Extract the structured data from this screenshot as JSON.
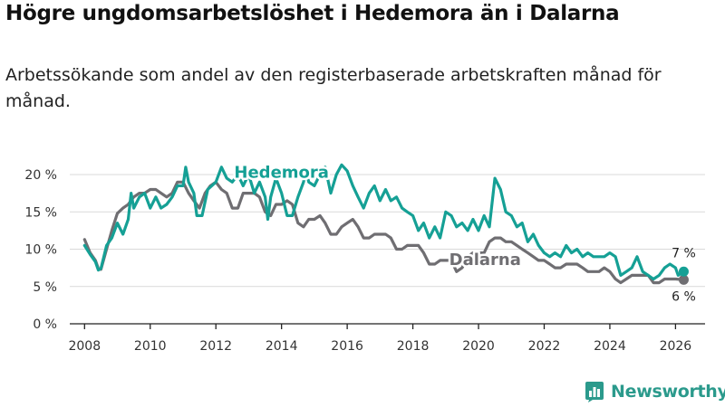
{
  "title": "Högre ungdomsarbetslöshet i Hedemora än i Dalarna",
  "subtitle": "Arbetssökande som andel av den registerbaserade arbetskraften månad för månad.",
  "brand": {
    "name": "Newsworthy",
    "icon": "bar-chart-logo-icon"
  },
  "colors": {
    "hedemora": "#15a095",
    "dalarna": "#6f6e72",
    "grid": "#d9d9d9",
    "axis": "#222222",
    "text": "#333333"
  },
  "chart_data": {
    "type": "line",
    "title": "Högre ungdomsarbetslöshet i Hedemora än i Dalarna",
    "xlabel": "",
    "ylabel": "",
    "xlim": [
      2007.55,
      2026.9
    ],
    "ylim": [
      0,
      20
    ],
    "x_ticks": [
      2008,
      2010,
      2012,
      2014,
      2016,
      2018,
      2020,
      2022,
      2024,
      2026
    ],
    "x_tick_labels": [
      "2008",
      "2010",
      "2012",
      "2014",
      "2016",
      "2018",
      "2020",
      "2022",
      "2024",
      "2026"
    ],
    "y_ticks": [
      0,
      5,
      10,
      15,
      20
    ],
    "y_tick_labels": [
      "0 %",
      "5 %",
      "10 %",
      "15 %",
      "20 %"
    ],
    "series": [
      {
        "name": "Hedemora",
        "label": "Hedemora",
        "end_label": "7 %",
        "points": [
          [
            2008.0,
            10.5
          ],
          [
            2008.17,
            9.3
          ],
          [
            2008.33,
            8.3
          ],
          [
            2008.42,
            7.2
          ],
          [
            2008.5,
            7.4
          ],
          [
            2008.67,
            10.5
          ],
          [
            2008.83,
            11.5
          ],
          [
            2009.0,
            13.5
          ],
          [
            2009.17,
            12.0
          ],
          [
            2009.33,
            14.0
          ],
          [
            2009.42,
            17.5
          ],
          [
            2009.5,
            15.5
          ],
          [
            2009.67,
            17.0
          ],
          [
            2009.83,
            17.5
          ],
          [
            2010.0,
            15.5
          ],
          [
            2010.17,
            17.0
          ],
          [
            2010.33,
            15.5
          ],
          [
            2010.5,
            16.0
          ],
          [
            2010.67,
            17.0
          ],
          [
            2010.83,
            18.5
          ],
          [
            2011.0,
            18.5
          ],
          [
            2011.08,
            21.0
          ],
          [
            2011.17,
            19.0
          ],
          [
            2011.33,
            17.5
          ],
          [
            2011.42,
            14.5
          ],
          [
            2011.58,
            14.5
          ],
          [
            2011.75,
            18.0
          ],
          [
            2012.0,
            19.0
          ],
          [
            2012.17,
            21.0
          ],
          [
            2012.33,
            19.5
          ],
          [
            2012.5,
            19.0
          ],
          [
            2012.67,
            20.0
          ],
          [
            2012.83,
            18.5
          ],
          [
            2013.0,
            20.0
          ],
          [
            2013.17,
            17.5
          ],
          [
            2013.33,
            19.0
          ],
          [
            2013.5,
            17.0
          ],
          [
            2013.58,
            14.0
          ],
          [
            2013.67,
            17.0
          ],
          [
            2013.83,
            19.5
          ],
          [
            2014.0,
            17.5
          ],
          [
            2014.17,
            14.5
          ],
          [
            2014.33,
            14.5
          ],
          [
            2014.5,
            17.0
          ],
          [
            2014.67,
            19.0
          ],
          [
            2014.75,
            20.5
          ],
          [
            2014.83,
            19.0
          ],
          [
            2015.0,
            18.5
          ],
          [
            2015.17,
            20.0
          ],
          [
            2015.33,
            21.0
          ],
          [
            2015.5,
            17.5
          ],
          [
            2015.67,
            20.0
          ],
          [
            2015.83,
            21.3
          ],
          [
            2016.0,
            20.5
          ],
          [
            2016.17,
            18.5
          ],
          [
            2016.33,
            17.0
          ],
          [
            2016.5,
            15.5
          ],
          [
            2016.67,
            17.5
          ],
          [
            2016.83,
            18.5
          ],
          [
            2017.0,
            16.5
          ],
          [
            2017.17,
            18.0
          ],
          [
            2017.33,
            16.5
          ],
          [
            2017.5,
            17.0
          ],
          [
            2017.67,
            15.5
          ],
          [
            2017.83,
            15.0
          ],
          [
            2018.0,
            14.5
          ],
          [
            2018.17,
            12.5
          ],
          [
            2018.33,
            13.5
          ],
          [
            2018.5,
            11.5
          ],
          [
            2018.67,
            13.0
          ],
          [
            2018.83,
            11.5
          ],
          [
            2019.0,
            15.0
          ],
          [
            2019.17,
            14.5
          ],
          [
            2019.33,
            13.0
          ],
          [
            2019.5,
            13.5
          ],
          [
            2019.67,
            12.5
          ],
          [
            2019.83,
            14.0
          ],
          [
            2020.0,
            12.5
          ],
          [
            2020.17,
            14.5
          ],
          [
            2020.33,
            13.0
          ],
          [
            2020.5,
            19.5
          ],
          [
            2020.67,
            18.0
          ],
          [
            2020.83,
            15.0
          ],
          [
            2021.0,
            14.5
          ],
          [
            2021.17,
            13.0
          ],
          [
            2021.33,
            13.5
          ],
          [
            2021.5,
            11.0
          ],
          [
            2021.67,
            12.0
          ],
          [
            2021.83,
            10.5
          ],
          [
            2022.0,
            9.5
          ],
          [
            2022.17,
            9.0
          ],
          [
            2022.33,
            9.5
          ],
          [
            2022.5,
            9.0
          ],
          [
            2022.67,
            10.5
          ],
          [
            2022.83,
            9.5
          ],
          [
            2023.0,
            10.0
          ],
          [
            2023.17,
            9.0
          ],
          [
            2023.33,
            9.5
          ],
          [
            2023.5,
            9.0
          ],
          [
            2023.67,
            9.0
          ],
          [
            2023.83,
            9.0
          ],
          [
            2024.0,
            9.5
          ],
          [
            2024.17,
            9.0
          ],
          [
            2024.33,
            6.5
          ],
          [
            2024.5,
            7.0
          ],
          [
            2024.67,
            7.5
          ],
          [
            2024.83,
            9.0
          ],
          [
            2025.0,
            7.0
          ],
          [
            2025.17,
            6.5
          ],
          [
            2025.33,
            6.0
          ],
          [
            2025.5,
            6.5
          ],
          [
            2025.67,
            7.5
          ],
          [
            2025.83,
            8.0
          ],
          [
            2026.0,
            7.5
          ],
          [
            2026.08,
            6.5
          ],
          [
            2026.25,
            7.0
          ]
        ]
      },
      {
        "name": "Dalarna",
        "label": "Dalarna",
        "end_label": "6 %",
        "points": [
          [
            2008.0,
            11.3
          ],
          [
            2008.17,
            9.5
          ],
          [
            2008.33,
            8.5
          ],
          [
            2008.42,
            7.4
          ],
          [
            2008.5,
            7.3
          ],
          [
            2008.67,
            10.0
          ],
          [
            2008.83,
            12.5
          ],
          [
            2009.0,
            14.8
          ],
          [
            2009.17,
            15.5
          ],
          [
            2009.33,
            16.0
          ],
          [
            2009.5,
            17.0
          ],
          [
            2009.67,
            17.5
          ],
          [
            2009.83,
            17.5
          ],
          [
            2010.0,
            18.0
          ],
          [
            2010.17,
            18.0
          ],
          [
            2010.33,
            17.5
          ],
          [
            2010.5,
            17.0
          ],
          [
            2010.67,
            17.5
          ],
          [
            2010.83,
            19.0
          ],
          [
            2011.0,
            19.0
          ],
          [
            2011.17,
            17.5
          ],
          [
            2011.33,
            16.5
          ],
          [
            2011.5,
            15.5
          ],
          [
            2011.67,
            17.5
          ],
          [
            2011.83,
            18.5
          ],
          [
            2012.0,
            19.0
          ],
          [
            2012.17,
            18.0
          ],
          [
            2012.33,
            17.5
          ],
          [
            2012.5,
            15.5
          ],
          [
            2012.67,
            15.5
          ],
          [
            2012.83,
            17.5
          ],
          [
            2013.0,
            17.5
          ],
          [
            2013.17,
            17.5
          ],
          [
            2013.33,
            17.0
          ],
          [
            2013.5,
            15.0
          ],
          [
            2013.67,
            14.5
          ],
          [
            2013.83,
            16.0
          ],
          [
            2014.0,
            16.0
          ],
          [
            2014.17,
            16.5
          ],
          [
            2014.33,
            16.0
          ],
          [
            2014.5,
            13.5
          ],
          [
            2014.67,
            13.0
          ],
          [
            2014.83,
            14.0
          ],
          [
            2015.0,
            14.0
          ],
          [
            2015.17,
            14.5
          ],
          [
            2015.33,
            13.5
          ],
          [
            2015.5,
            12.0
          ],
          [
            2015.67,
            12.0
          ],
          [
            2015.83,
            13.0
          ],
          [
            2016.0,
            13.5
          ],
          [
            2016.17,
            14.0
          ],
          [
            2016.33,
            13.0
          ],
          [
            2016.5,
            11.5
          ],
          [
            2016.67,
            11.5
          ],
          [
            2016.83,
            12.0
          ],
          [
            2017.0,
            12.0
          ],
          [
            2017.17,
            12.0
          ],
          [
            2017.33,
            11.5
          ],
          [
            2017.5,
            10.0
          ],
          [
            2017.67,
            10.0
          ],
          [
            2017.83,
            10.5
          ],
          [
            2018.0,
            10.5
          ],
          [
            2018.17,
            10.5
          ],
          [
            2018.33,
            9.5
          ],
          [
            2018.5,
            8.0
          ],
          [
            2018.67,
            8.0
          ],
          [
            2018.83,
            8.5
          ],
          [
            2019.0,
            8.5
          ],
          [
            2019.17,
            8.5
          ],
          [
            2019.33,
            7.0
          ],
          [
            2019.5,
            7.5
          ],
          [
            2019.67,
            9.0
          ],
          [
            2019.83,
            9.5
          ],
          [
            2020.0,
            9.5
          ],
          [
            2020.17,
            9.5
          ],
          [
            2020.33,
            11.0
          ],
          [
            2020.5,
            11.5
          ],
          [
            2020.67,
            11.5
          ],
          [
            2020.83,
            11.0
          ],
          [
            2021.0,
            11.0
          ],
          [
            2021.17,
            10.5
          ],
          [
            2021.33,
            10.0
          ],
          [
            2021.5,
            9.5
          ],
          [
            2021.67,
            9.0
          ],
          [
            2021.83,
            8.5
          ],
          [
            2022.0,
            8.5
          ],
          [
            2022.17,
            8.0
          ],
          [
            2022.33,
            7.5
          ],
          [
            2022.5,
            7.5
          ],
          [
            2022.67,
            8.0
          ],
          [
            2022.83,
            8.0
          ],
          [
            2023.0,
            8.0
          ],
          [
            2023.17,
            7.5
          ],
          [
            2023.33,
            7.0
          ],
          [
            2023.5,
            7.0
          ],
          [
            2023.67,
            7.0
          ],
          [
            2023.83,
            7.5
          ],
          [
            2024.0,
            7.0
          ],
          [
            2024.17,
            6.0
          ],
          [
            2024.33,
            5.5
          ],
          [
            2024.5,
            6.0
          ],
          [
            2024.67,
            6.5
          ],
          [
            2024.83,
            6.5
          ],
          [
            2025.0,
            6.5
          ],
          [
            2025.17,
            6.5
          ],
          [
            2025.33,
            5.5
          ],
          [
            2025.5,
            5.5
          ],
          [
            2025.67,
            6.0
          ],
          [
            2025.83,
            6.0
          ],
          [
            2026.0,
            6.0
          ],
          [
            2026.25,
            5.9
          ]
        ]
      }
    ]
  }
}
